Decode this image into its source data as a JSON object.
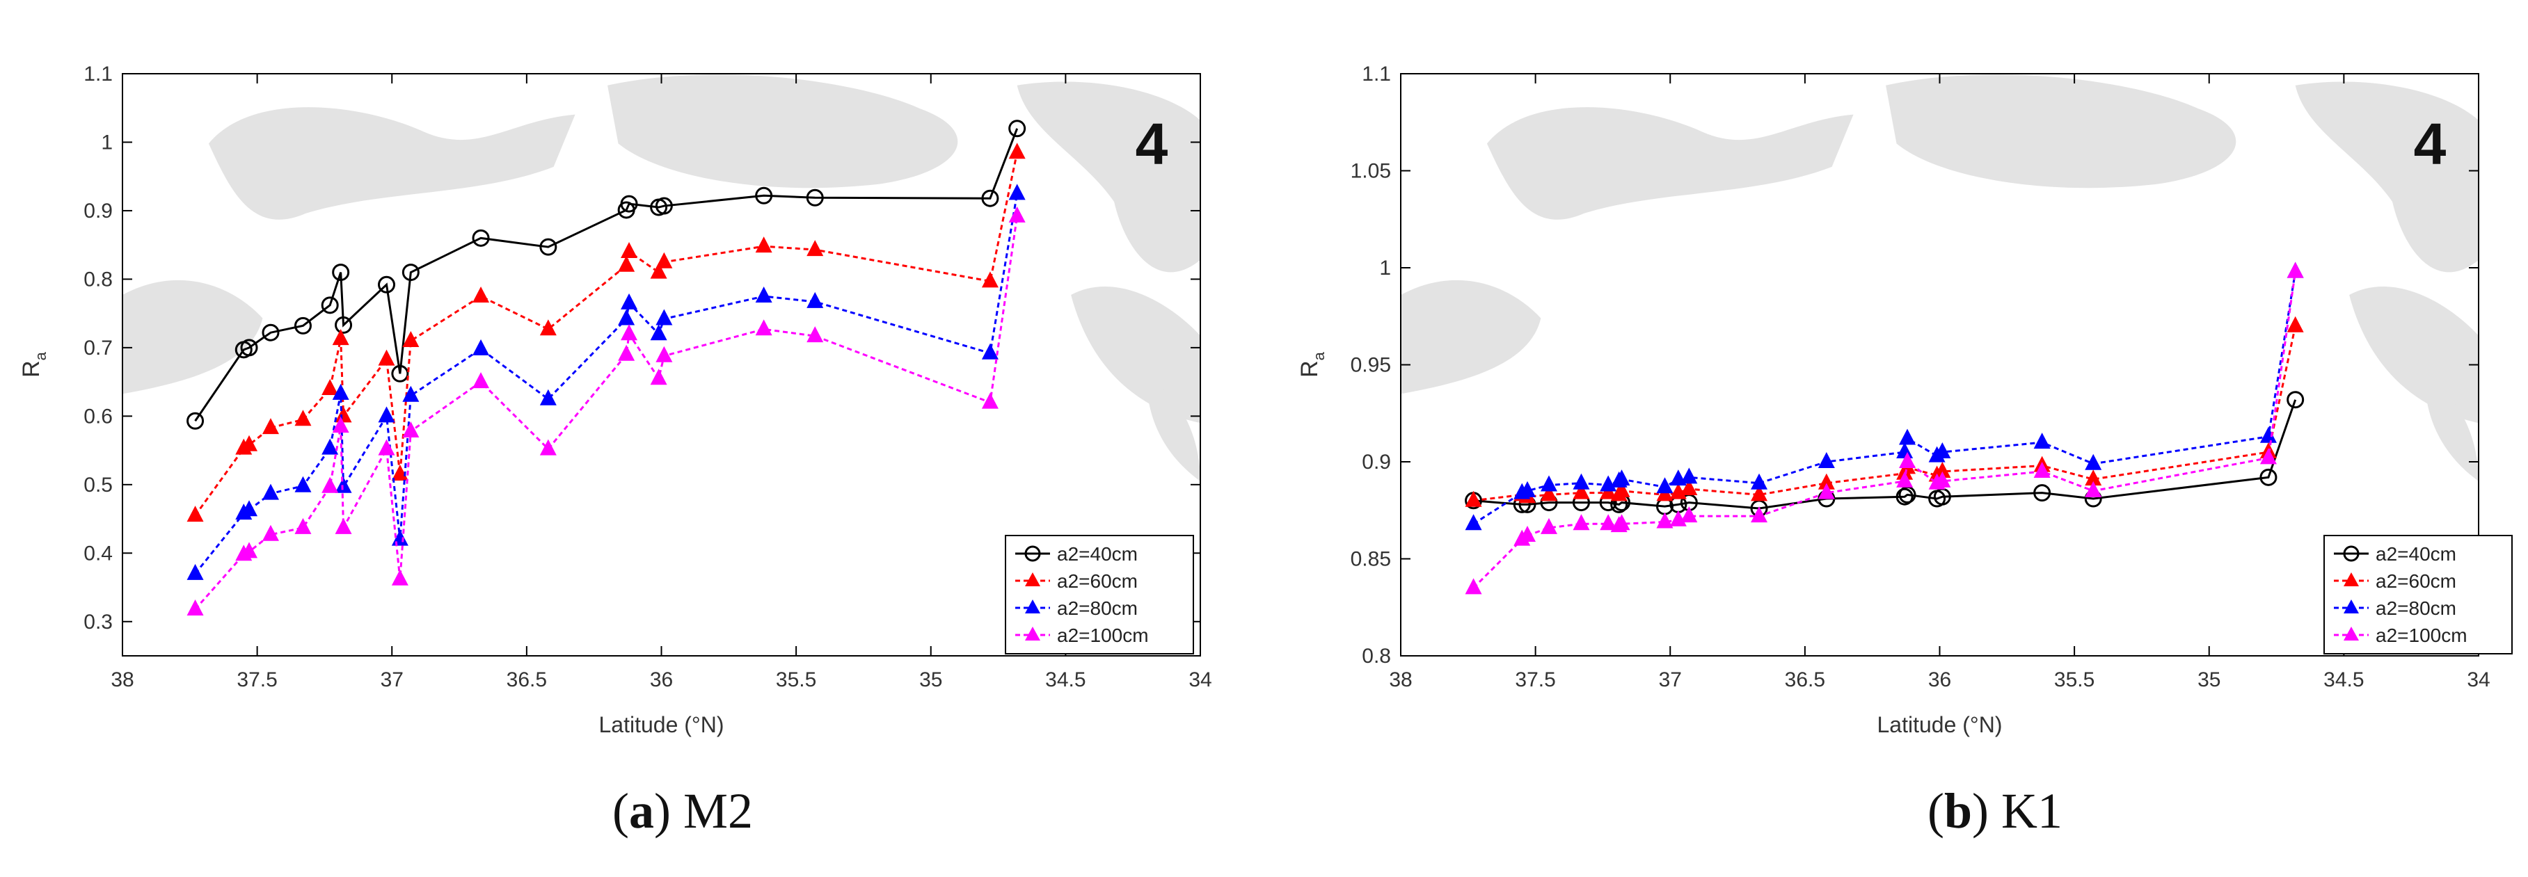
{
  "chart_data": [
    {
      "type": "line",
      "caption_letter": "a",
      "caption_text": "M2",
      "xlabel": "Latitude (°N)",
      "ylabel": "R",
      "ylabel_sub": "a",
      "xlim": [
        38,
        34
      ],
      "ylim": [
        0.25,
        1.1
      ],
      "xticks": [
        "38",
        "37.5",
        "37",
        "36.5",
        "36",
        "35.5",
        "35",
        "34.5",
        "34"
      ],
      "yticks": [
        "0.3",
        "0.4",
        "0.5",
        "0.6",
        "0.7",
        "0.8",
        "0.9",
        "1",
        "1.1"
      ],
      "background_marker": "4",
      "legend_position": "bottom-right",
      "series": [
        {
          "name": "a2=40cm",
          "color": "#000000",
          "marker": "circle",
          "line": "solid",
          "x": [
            37.73,
            37.55,
            37.53,
            37.45,
            37.33,
            37.23,
            37.19,
            37.18,
            37.02,
            36.97,
            36.93,
            36.67,
            36.42,
            36.13,
            36.12,
            36.01,
            35.99,
            35.62,
            35.43,
            34.78,
            34.68
          ],
          "y": [
            0.593,
            0.697,
            0.7,
            0.722,
            0.732,
            0.762,
            0.81,
            0.733,
            0.792,
            0.662,
            0.81,
            0.86,
            0.847,
            0.901,
            0.91,
            0.905,
            0.907,
            0.922,
            0.919,
            0.918,
            1.02
          ]
        },
        {
          "name": "a2=60cm",
          "color": "#ff0000",
          "marker": "triangle",
          "line": "dotted",
          "x": [
            37.73,
            37.55,
            37.53,
            37.45,
            37.33,
            37.23,
            37.19,
            37.18,
            37.02,
            36.97,
            36.93,
            36.67,
            36.42,
            36.13,
            36.12,
            36.01,
            35.99,
            35.62,
            35.43,
            34.78,
            34.68
          ],
          "y": [
            0.455,
            0.553,
            0.558,
            0.583,
            0.595,
            0.64,
            0.713,
            0.6,
            0.683,
            0.515,
            0.71,
            0.775,
            0.727,
            0.82,
            0.84,
            0.81,
            0.825,
            0.848,
            0.843,
            0.797,
            0.985
          ]
        },
        {
          "name": "a2=80cm",
          "color": "#0000ff",
          "marker": "triangle",
          "line": "dotted",
          "x": [
            37.73,
            37.55,
            37.53,
            37.45,
            37.33,
            37.23,
            37.19,
            37.18,
            37.02,
            36.97,
            36.93,
            36.67,
            36.42,
            36.13,
            36.12,
            36.01,
            35.99,
            35.62,
            35.43,
            34.78,
            34.68
          ],
          "y": [
            0.37,
            0.458,
            0.463,
            0.487,
            0.498,
            0.553,
            0.633,
            0.497,
            0.6,
            0.42,
            0.63,
            0.698,
            0.625,
            0.742,
            0.765,
            0.72,
            0.742,
            0.775,
            0.767,
            0.692,
            0.925
          ]
        },
        {
          "name": "a2=100cm",
          "color": "#ff00ff",
          "marker": "triangle",
          "line": "dotted",
          "x": [
            37.73,
            37.55,
            37.53,
            37.45,
            37.33,
            37.23,
            37.19,
            37.18,
            37.02,
            36.97,
            36.93,
            36.67,
            36.42,
            36.13,
            36.12,
            36.01,
            35.99,
            35.62,
            35.43,
            34.78,
            34.68
          ],
          "y": [
            0.318,
            0.398,
            0.402,
            0.427,
            0.437,
            0.497,
            0.585,
            0.437,
            0.552,
            0.362,
            0.578,
            0.65,
            0.552,
            0.69,
            0.72,
            0.655,
            0.688,
            0.727,
            0.717,
            0.62,
            0.892
          ]
        }
      ]
    },
    {
      "type": "line",
      "caption_letter": "b",
      "caption_text": "K1",
      "xlabel": "Latitude (°N)",
      "ylabel": "R",
      "ylabel_sub": "a",
      "xlim": [
        38,
        34
      ],
      "ylim": [
        0.8,
        1.1
      ],
      "xticks": [
        "38",
        "37.5",
        "37",
        "36.5",
        "36",
        "35.5",
        "35",
        "34.5",
        "34"
      ],
      "yticks": [
        "0.8",
        "0.85",
        "0.9",
        "0.95",
        "1",
        "1.05",
        "1.1"
      ],
      "background_marker": "4",
      "legend_position": "bottom-right",
      "series": [
        {
          "name": "a2=40cm",
          "color": "#000000",
          "marker": "circle",
          "line": "solid",
          "x": [
            37.73,
            37.55,
            37.53,
            37.45,
            37.33,
            37.23,
            37.19,
            37.18,
            37.02,
            36.97,
            36.93,
            36.67,
            36.42,
            36.13,
            36.12,
            36.01,
            35.99,
            35.62,
            35.43,
            34.78,
            34.68
          ],
          "y": [
            0.88,
            0.878,
            0.878,
            0.879,
            0.879,
            0.879,
            0.878,
            0.879,
            0.877,
            0.878,
            0.879,
            0.876,
            0.881,
            0.882,
            0.883,
            0.881,
            0.882,
            0.884,
            0.881,
            0.892,
            0.932
          ]
        },
        {
          "name": "a2=60cm",
          "color": "#ff0000",
          "marker": "triangle",
          "line": "dotted",
          "x": [
            37.73,
            37.55,
            37.53,
            37.45,
            37.33,
            37.23,
            37.19,
            37.18,
            37.02,
            36.97,
            36.93,
            36.67,
            36.42,
            36.13,
            36.12,
            36.01,
            35.99,
            35.62,
            35.43,
            34.78,
            34.68
          ],
          "y": [
            0.88,
            0.883,
            0.882,
            0.883,
            0.884,
            0.884,
            0.883,
            0.885,
            0.883,
            0.884,
            0.886,
            0.883,
            0.889,
            0.894,
            0.897,
            0.893,
            0.895,
            0.898,
            0.891,
            0.905,
            0.97
          ]
        },
        {
          "name": "a2=80cm",
          "color": "#0000ff",
          "marker": "triangle",
          "line": "dotted",
          "x": [
            37.73,
            37.55,
            37.53,
            37.45,
            37.33,
            37.23,
            37.19,
            37.18,
            37.02,
            36.97,
            36.93,
            36.67,
            36.42,
            36.13,
            36.12,
            36.01,
            35.99,
            35.62,
            35.43,
            34.78,
            34.68
          ],
          "y": [
            0.868,
            0.884,
            0.885,
            0.888,
            0.889,
            0.888,
            0.89,
            0.891,
            0.887,
            0.891,
            0.892,
            0.889,
            0.9,
            0.905,
            0.912,
            0.903,
            0.905,
            0.91,
            0.899,
            0.913,
            0.998
          ]
        },
        {
          "name": "a2=100cm",
          "color": "#ff00ff",
          "marker": "triangle",
          "line": "dotted",
          "x": [
            37.73,
            37.55,
            37.53,
            37.45,
            37.33,
            37.23,
            37.19,
            37.18,
            37.02,
            36.97,
            36.93,
            36.67,
            36.42,
            36.13,
            36.12,
            36.01,
            35.99,
            35.62,
            35.43,
            34.78,
            34.68
          ],
          "y": [
            0.835,
            0.86,
            0.862,
            0.866,
            0.868,
            0.868,
            0.867,
            0.868,
            0.869,
            0.87,
            0.872,
            0.872,
            0.884,
            0.89,
            0.9,
            0.889,
            0.89,
            0.895,
            0.885,
            0.902,
            0.998
          ]
        }
      ]
    }
  ]
}
